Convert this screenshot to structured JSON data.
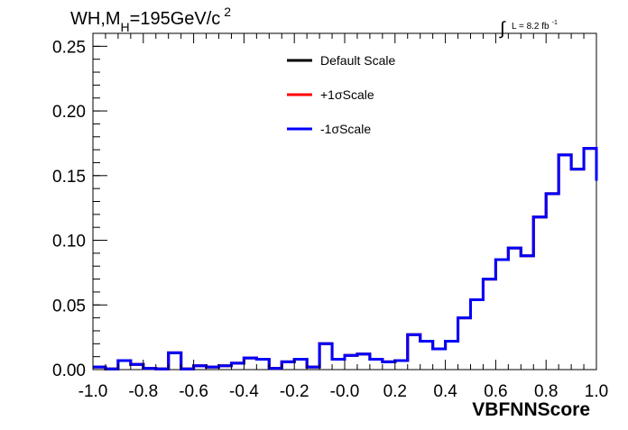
{
  "chart_data": {
    "type": "line",
    "style": "step-histogram",
    "title_parts": {
      "main": "WH,M",
      "sub": "H",
      "rest": "=195GeV/c",
      "sup": "2"
    },
    "lumi_parts": {
      "integral": "∫",
      "text": "L = 8.2 fb",
      "sup": "-1"
    },
    "xlabel": "VBFNNScore",
    "ylabel": "",
    "xlim": [
      -1.0,
      1.0
    ],
    "ylim": [
      0.0,
      0.26
    ],
    "x_ticks": [
      "-1.0",
      "-0.8",
      "-0.6",
      "-0.4",
      "-0.2",
      "-0.0",
      "0.2",
      "0.4",
      "0.6",
      "0.8",
      "1.0"
    ],
    "x_tick_values": [
      -1.0,
      -0.8,
      -0.6,
      -0.4,
      -0.2,
      0.0,
      0.2,
      0.4,
      0.6,
      0.8,
      1.0
    ],
    "y_ticks": [
      "0.00",
      "0.05",
      "0.10",
      "0.15",
      "0.20",
      "0.25"
    ],
    "y_tick_values": [
      0.0,
      0.05,
      0.1,
      0.15,
      0.2,
      0.25
    ],
    "grid": false,
    "legend_position": "top-center",
    "bin_edges": [
      -1.0,
      -0.95,
      -0.9,
      -0.85,
      -0.8,
      -0.75,
      -0.7,
      -0.65,
      -0.6,
      -0.55,
      -0.5,
      -0.45,
      -0.4,
      -0.35,
      -0.3,
      -0.25,
      -0.2,
      -0.15,
      -0.1,
      -0.05,
      0.0,
      0.05,
      0.1,
      0.15,
      0.2,
      0.25,
      0.3,
      0.35,
      0.4,
      0.45,
      0.5,
      0.55,
      0.6,
      0.65,
      0.7,
      0.75,
      0.8,
      0.85,
      0.9,
      0.95,
      1.0
    ],
    "series": [
      {
        "name": "Default Scale",
        "color": "#000000",
        "values": [
          0.002,
          0.0005,
          0.007,
          0.004,
          0.001,
          0.0005,
          0.013,
          0.0005,
          0.003,
          0.002,
          0.003,
          0.005,
          0.009,
          0.008,
          0.001,
          0.006,
          0.008,
          0.002,
          0.02,
          0.008,
          0.011,
          0.012,
          0.008,
          0.006,
          0.007,
          0.027,
          0.022,
          0.016,
          0.022,
          0.04,
          0.054,
          0.07,
          0.085,
          0.094,
          0.088,
          0.118,
          0.136,
          0.166,
          0.155,
          0.171,
          0.146
        ]
      },
      {
        "name": "+1σScale",
        "color": "#ff0000",
        "values": [
          0.002,
          0.0005,
          0.007,
          0.004,
          0.001,
          0.0005,
          0.013,
          0.0005,
          0.003,
          0.002,
          0.003,
          0.005,
          0.009,
          0.008,
          0.001,
          0.006,
          0.008,
          0.002,
          0.02,
          0.008,
          0.011,
          0.012,
          0.008,
          0.006,
          0.007,
          0.027,
          0.022,
          0.016,
          0.022,
          0.04,
          0.054,
          0.07,
          0.085,
          0.094,
          0.088,
          0.118,
          0.136,
          0.166,
          0.155,
          0.171,
          0.146
        ]
      },
      {
        "name": "-1σScale",
        "color": "#0000ff",
        "values": [
          0.002,
          0.0005,
          0.007,
          0.004,
          0.001,
          0.0005,
          0.013,
          0.0005,
          0.003,
          0.002,
          0.003,
          0.005,
          0.009,
          0.008,
          0.001,
          0.006,
          0.008,
          0.002,
          0.02,
          0.008,
          0.011,
          0.012,
          0.008,
          0.006,
          0.007,
          0.027,
          0.022,
          0.016,
          0.022,
          0.04,
          0.054,
          0.07,
          0.085,
          0.094,
          0.088,
          0.118,
          0.136,
          0.166,
          0.155,
          0.171,
          0.146
        ]
      }
    ]
  }
}
